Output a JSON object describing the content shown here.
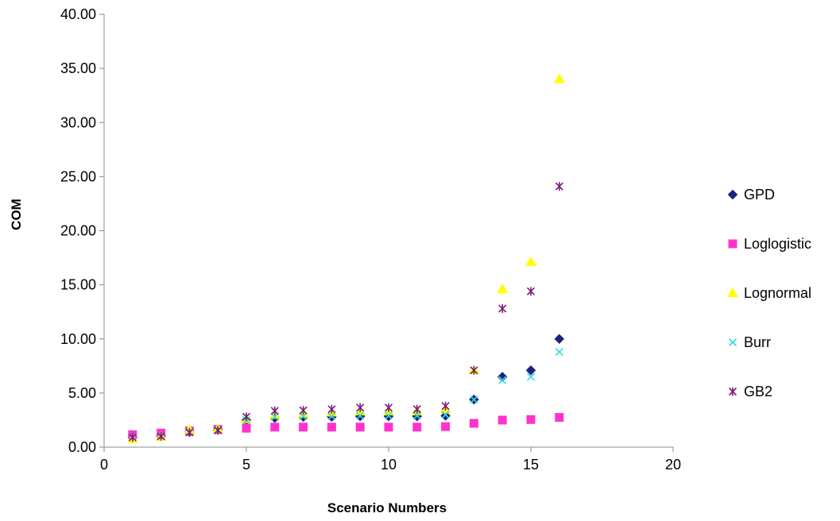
{
  "chart_data": {
    "type": "scatter",
    "title": "",
    "xlabel": "Scenario Numbers",
    "ylabel": "COM",
    "xlim": [
      0,
      20
    ],
    "ylim": [
      0,
      40
    ],
    "xticks": [
      0,
      5,
      10,
      15,
      20
    ],
    "yticks": [
      0,
      5,
      10,
      15,
      20,
      25,
      30,
      35,
      40
    ],
    "yticks_labels": [
      "0.00",
      "5.00",
      "10.00",
      "15.00",
      "20.00",
      "25.00",
      "30.00",
      "35.00",
      "40.00"
    ],
    "grid": false,
    "legend_position": "right",
    "series": [
      {
        "name": "GPD",
        "marker": "diamond",
        "color": "#1a237e",
        "x": [
          1,
          2,
          3,
          4,
          5,
          6,
          7,
          8,
          9,
          10,
          11,
          12,
          13,
          14,
          15,
          16
        ],
        "y": [
          0.95,
          1.05,
          1.4,
          1.6,
          2.5,
          2.7,
          2.8,
          2.8,
          2.85,
          2.85,
          2.85,
          2.9,
          4.4,
          6.5,
          7.1,
          10.0
        ]
      },
      {
        "name": "Loglogistic",
        "marker": "square",
        "color": "#ff33cc",
        "x": [
          1,
          2,
          3,
          4,
          5,
          6,
          7,
          8,
          9,
          10,
          11,
          12,
          13,
          14,
          15,
          16
        ],
        "y": [
          1.15,
          1.3,
          1.5,
          1.65,
          1.75,
          1.85,
          1.85,
          1.85,
          1.85,
          1.85,
          1.85,
          1.9,
          2.2,
          2.5,
          2.55,
          2.75
        ]
      },
      {
        "name": "Lognormal",
        "marker": "triangle",
        "color": "#ffff00",
        "x": [
          1,
          2,
          3,
          4,
          5,
          6,
          7,
          8,
          9,
          10,
          11,
          12,
          13,
          14,
          15,
          16
        ],
        "y": [
          0.75,
          0.95,
          1.6,
          1.7,
          2.6,
          3.0,
          3.1,
          3.2,
          3.3,
          3.3,
          3.3,
          3.5,
          7.1,
          14.6,
          17.1,
          34.0
        ]
      },
      {
        "name": "Burr",
        "marker": "x",
        "color": "#33dddd",
        "x": [
          1,
          2,
          3,
          4,
          5,
          6,
          7,
          8,
          9,
          10,
          11,
          12,
          13,
          14,
          15,
          16
        ],
        "y": [
          0.95,
          1.05,
          1.4,
          1.6,
          2.5,
          2.8,
          2.85,
          2.85,
          2.9,
          2.9,
          2.9,
          3.0,
          4.4,
          6.2,
          6.5,
          8.8
        ]
      },
      {
        "name": "GB2",
        "marker": "asterisk",
        "color": "#7b1a7b",
        "x": [
          1,
          2,
          3,
          4,
          5,
          6,
          7,
          8,
          9,
          10,
          11,
          12,
          13,
          14,
          15,
          16
        ],
        "y": [
          0.9,
          1.0,
          1.35,
          1.55,
          2.8,
          3.35,
          3.4,
          3.5,
          3.65,
          3.65,
          3.5,
          3.8,
          7.1,
          12.8,
          14.4,
          24.1
        ]
      }
    ]
  }
}
